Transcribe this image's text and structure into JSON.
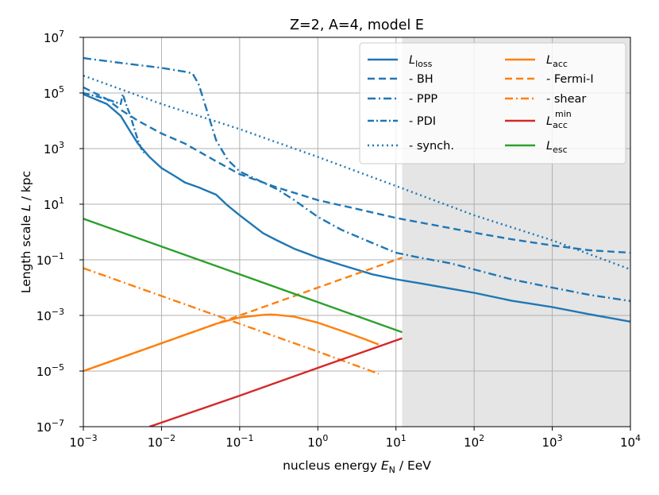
{
  "chart_data": {
    "type": "line",
    "title": "Z=2, A=4, model E",
    "xlabel": "nucleus energy E_N / EeV",
    "ylabel": "Length scale L / kpc",
    "xlabel_parts": [
      "nucleus energy ",
      "E",
      "N",
      " / EeV"
    ],
    "ylabel_parts": [
      "Length scale ",
      "L",
      " / kpc"
    ],
    "xscale": "log",
    "yscale": "log",
    "xlim": [
      0.001,
      10000
    ],
    "ylim": [
      1e-07,
      10000000
    ],
    "grid": true,
    "shaded_region": {
      "x_from": 12,
      "x_to": 10000,
      "color": "#e5e5e5"
    },
    "x_tick_exponents": [
      "−3",
      "−2",
      "−1",
      "0",
      "1",
      "2",
      "3",
      "4"
    ],
    "y_tick_exponents": [
      "−7",
      "−5",
      "−3",
      "−1",
      "1",
      "3",
      "5",
      "7"
    ],
    "tick_base": "10",
    "legend_position": "top-right",
    "series": [
      {
        "id": "loss",
        "name": "L_loss",
        "legend": [
          "L",
          "loss"
        ],
        "color": "#1f77b4",
        "dash": "solid",
        "x": [
          0.001,
          0.002,
          0.003,
          0.004,
          0.005,
          0.007,
          0.01,
          0.015,
          0.02,
          0.03,
          0.05,
          0.07,
          0.1,
          0.2,
          0.3,
          0.5,
          1,
          2,
          5,
          10,
          20,
          50,
          100,
          300,
          1000,
          3000,
          10000
        ],
        "y": [
          90000,
          40000,
          15000,
          4000,
          1500,
          500,
          200,
          100,
          60,
          40,
          22,
          9,
          4,
          0.9,
          0.5,
          0.25,
          0.12,
          0.065,
          0.03,
          0.02,
          0.0145,
          0.0092,
          0.0065,
          0.0034,
          0.002,
          0.0011,
          0.0006
        ]
      },
      {
        "id": "bh",
        "name": "- BH",
        "legend": [
          "  - BH"
        ],
        "color": "#1f77b4",
        "dash": "9,5",
        "x": [
          0.001,
          0.002,
          0.003,
          0.005,
          0.01,
          0.02,
          0.05,
          0.1,
          0.3,
          1,
          3,
          10,
          30,
          100,
          300,
          1000,
          3000,
          10000
        ],
        "y": [
          160000,
          60000,
          25000,
          10000,
          3500,
          1500,
          350,
          120,
          40,
          14,
          7,
          3.2,
          1.8,
          0.95,
          0.55,
          0.33,
          0.22,
          0.18
        ]
      },
      {
        "id": "ppp",
        "name": "- PPP",
        "legend": [
          "  - PPP"
        ],
        "color": "#1f77b4",
        "dash": "10,4,2,4",
        "x": [
          0.001,
          0.003,
          0.01,
          0.02,
          0.025,
          0.03,
          0.04,
          0.05,
          0.07,
          0.1,
          0.2,
          0.3,
          0.5,
          1,
          2,
          5,
          10,
          20,
          50,
          100,
          300,
          1000,
          3000,
          10000
        ],
        "y": [
          1800000,
          1200000,
          800000,
          580000,
          500000,
          200000,
          15000,
          2000,
          400,
          150,
          60,
          35,
          14,
          3.5,
          1.2,
          0.4,
          0.18,
          0.12,
          0.075,
          0.045,
          0.02,
          0.01,
          0.0055,
          0.0033
        ]
      },
      {
        "id": "pdi",
        "name": "- PDI",
        "legend": [
          "  - PDI"
        ],
        "color": "#1f77b4",
        "dash": "8,3,2,3",
        "x": [
          0.001,
          0.002,
          0.003,
          0.0032,
          0.0035,
          0.004,
          0.0045,
          0.005,
          0.0055,
          0.006
        ],
        "y": [
          100000,
          60000,
          40000,
          90000,
          40000,
          15000,
          5000,
          2000,
          1000,
          700
        ]
      },
      {
        "id": "synch",
        "name": "- synch.",
        "legend": [
          "  - synch."
        ],
        "color": "#1f77b4",
        "dash": "2,4",
        "x": [
          0.001,
          0.01,
          0.1,
          1,
          10,
          100,
          1000,
          10000
        ],
        "y": [
          420000,
          40000,
          5000,
          500,
          45,
          4,
          0.5,
          0.045
        ]
      },
      {
        "id": "acc",
        "name": "L_acc",
        "legend": [
          "L",
          "acc"
        ],
        "color": "#ff7f0e",
        "dash": "solid",
        "x": [
          0.001,
          0.01,
          0.05,
          0.1,
          0.2,
          0.25,
          0.3,
          0.5,
          1,
          2,
          4,
          6
        ],
        "y": [
          1e-05,
          0.0001,
          0.0005,
          0.00085,
          0.00105,
          0.00108,
          0.00105,
          0.0009,
          0.00055,
          0.00028,
          0.00014,
          9e-05
        ]
      },
      {
        "id": "fermi",
        "name": "- Fermi-I",
        "legend": [
          "  - Fermi-I"
        ],
        "color": "#ff7f0e",
        "dash": "9,5",
        "x": [
          0.001,
          0.1,
          1,
          12
        ],
        "y": [
          1e-05,
          0.001,
          0.01,
          0.12
        ]
      },
      {
        "id": "shear",
        "name": "- shear",
        "legend": [
          "  - shear"
        ],
        "color": "#ff7f0e",
        "dash": "10,4,2,4",
        "x": [
          0.001,
          0.01,
          0.1,
          1,
          6
        ],
        "y": [
          0.05,
          0.005,
          0.0005,
          5e-05,
          8e-06
        ]
      },
      {
        "id": "accmin",
        "name": "L_acc^min",
        "legend": [
          "L",
          "acc",
          "min"
        ],
        "color": "#d62728",
        "dash": "solid",
        "x": [
          0.007,
          0.01,
          0.1,
          1,
          12
        ],
        "y": [
          1e-07,
          1.4e-07,
          1.3e-06,
          1.3e-05,
          0.00015
        ]
      },
      {
        "id": "esc",
        "name": "L_esc",
        "legend": [
          "L",
          "esc"
        ],
        "color": "#2ca02c",
        "dash": "solid",
        "x": [
          0.001,
          0.01,
          0.1,
          1,
          12
        ],
        "y": [
          3,
          0.3,
          0.03,
          0.003,
          0.00025
        ]
      }
    ]
  }
}
